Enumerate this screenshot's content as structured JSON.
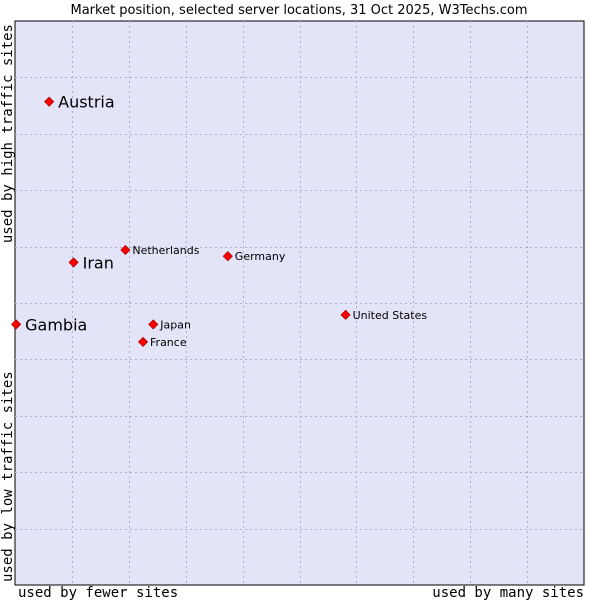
{
  "chart_data": {
    "type": "scatter",
    "title": "Market position, selected server locations, 31 Oct 2025, W3Techs.com",
    "x_axis": {
      "low_label": "used by fewer sites",
      "high_label": "used by many sites",
      "range": [
        0,
        100
      ],
      "grid_step": 10
    },
    "y_axis": {
      "low_label": "used by low traffic sites",
      "high_label": "used by high traffic sites",
      "range": [
        0,
        100
      ],
      "grid_step": 10
    },
    "points": [
      {
        "label": "Austria",
        "x": 6,
        "y": 85.7,
        "emphasis": true
      },
      {
        "label": "Iran",
        "x": 10.3,
        "y": 57.2,
        "emphasis": true
      },
      {
        "label": "Gambia",
        "x": 0.2,
        "y": 46.2,
        "emphasis": true
      },
      {
        "label": "Netherlands",
        "x": 19.4,
        "y": 59.4,
        "emphasis": false
      },
      {
        "label": "Germany",
        "x": 37.4,
        "y": 58.3,
        "emphasis": false
      },
      {
        "label": "Japan",
        "x": 24.3,
        "y": 46.2,
        "emphasis": false
      },
      {
        "label": "France",
        "x": 22.5,
        "y": 43.1,
        "emphasis": false
      },
      {
        "label": "United States",
        "x": 58.1,
        "y": 47.9,
        "emphasis": false
      }
    ],
    "colors": {
      "plot_background": "#e4e4f8",
      "grid": "#b0b0c8",
      "marker": "#ff0000",
      "marker_outline": "#aa0000",
      "text": "#000000"
    }
  }
}
